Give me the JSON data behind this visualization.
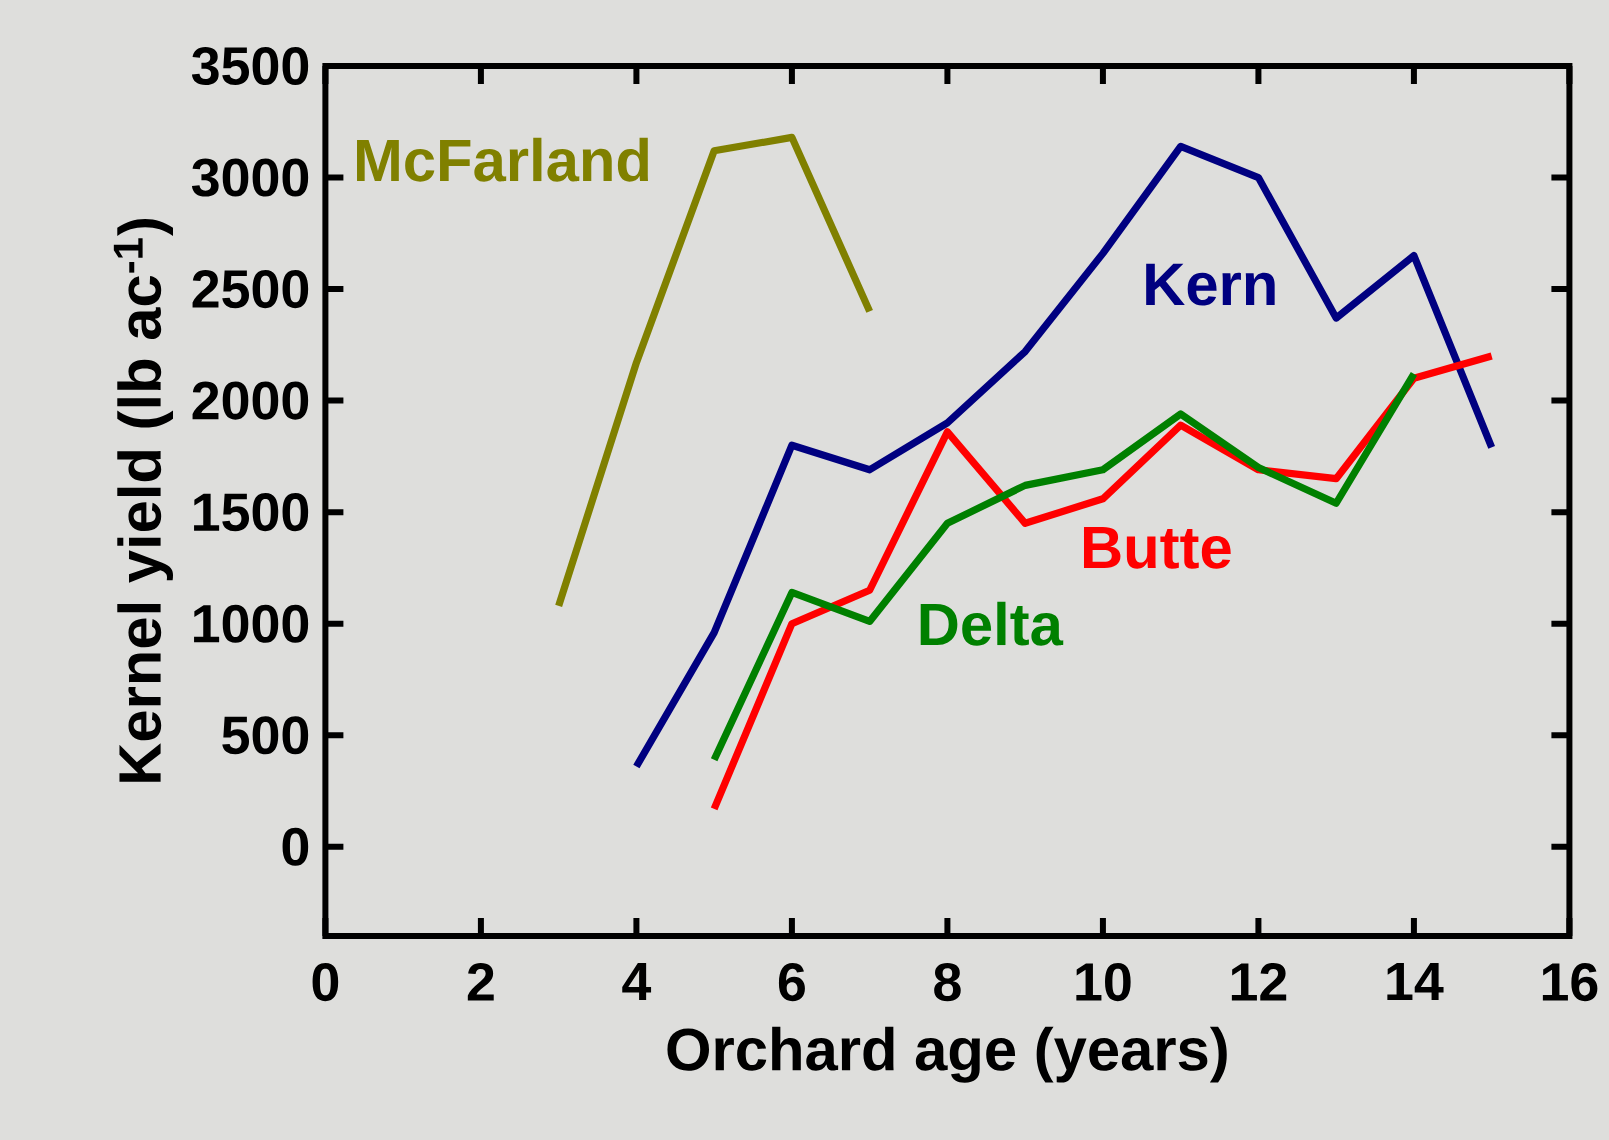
{
  "chart_data": {
    "type": "line",
    "xlabel": "Orchard age (years)",
    "ylabel": "Kernel yield (lb ac$^{-1}$)",
    "xlim": [
      0,
      16
    ],
    "xticks": [
      0,
      2,
      4,
      6,
      8,
      10,
      12,
      14,
      16
    ],
    "ylim": [
      -400,
      3500
    ],
    "yticks": [
      0,
      500,
      1000,
      1500,
      2000,
      2500,
      3000,
      3500
    ],
    "grid": false,
    "line_style": "solid",
    "series": [
      {
        "name": "McFarland",
        "color": "#808000",
        "x": [
          3,
          4,
          5,
          6,
          7
        ],
        "values": [
          1080,
          2170,
          3120,
          3180,
          2400
        ]
      },
      {
        "name": "Kern",
        "color": "#000080",
        "x": [
          4,
          5,
          6,
          7,
          8,
          9,
          10,
          11,
          12,
          13,
          14,
          15
        ],
        "values": [
          360,
          960,
          1800,
          1690,
          1900,
          2220,
          2660,
          3140,
          3000,
          2370,
          2650,
          1790
        ]
      },
      {
        "name": "Butte",
        "color": "#ff0000",
        "x": [
          5,
          6,
          7,
          8,
          9,
          10,
          11,
          12,
          13,
          14,
          15
        ],
        "values": [
          170,
          1000,
          1150,
          1860,
          1450,
          1560,
          1890,
          1690,
          1650,
          2100,
          2200
        ]
      },
      {
        "name": "Delta",
        "color": "#008000",
        "x": [
          5,
          6,
          7,
          8,
          9,
          10,
          11,
          12,
          13,
          14
        ],
        "values": [
          390,
          1140,
          1010,
          1450,
          1620,
          1690,
          1940,
          1700,
          1540,
          2120
        ]
      }
    ]
  }
}
